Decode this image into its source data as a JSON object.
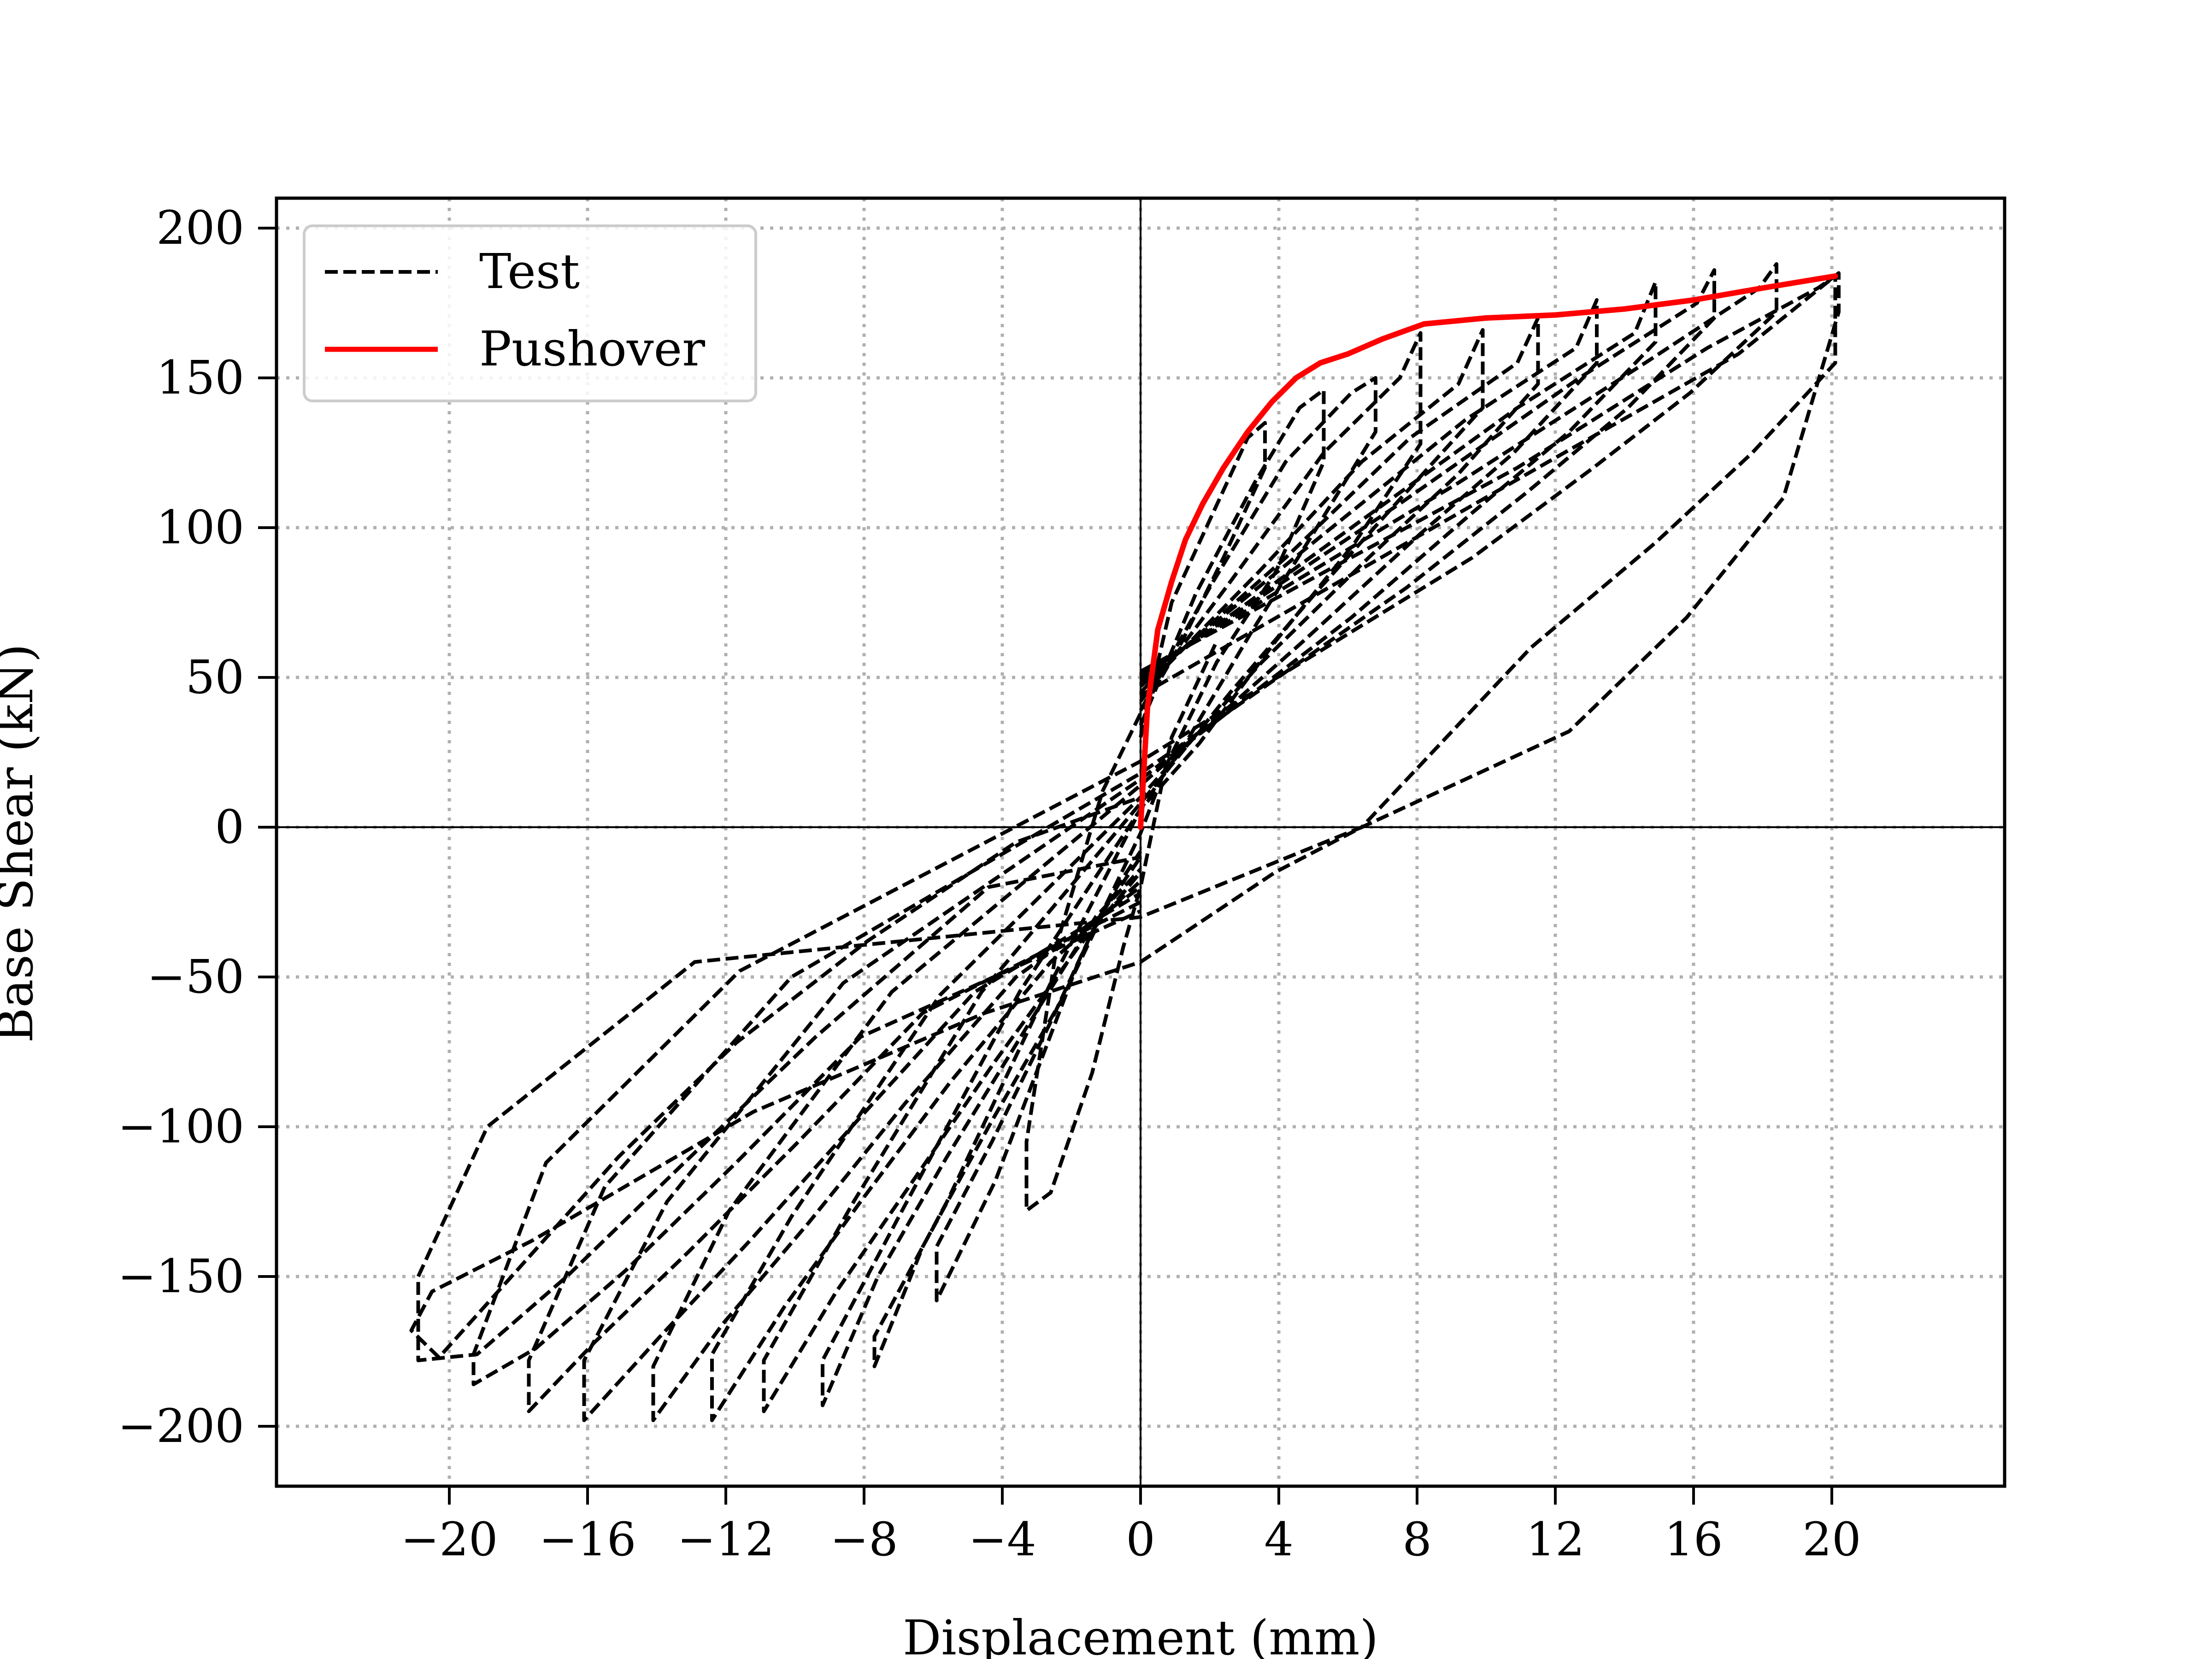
{
  "chart_data": {
    "type": "line",
    "xlabel": "Displacement (mm)",
    "ylabel": "Base Shear (kN)",
    "xlim": [
      -25,
      25
    ],
    "ylim": [
      -220,
      210
    ],
    "xticks": [
      -20,
      -16,
      -12,
      -8,
      -4,
      0,
      4,
      8,
      12,
      16,
      20
    ],
    "xtick_labels": [
      "−20",
      "−16",
      "−12",
      "−8",
      "−4",
      "0",
      "4",
      "8",
      "12",
      "16",
      "20"
    ],
    "yticks": [
      200,
      150,
      100,
      50,
      0,
      -50,
      -100,
      -150,
      -200
    ],
    "ytick_labels": [
      "200",
      "150",
      "100",
      "50",
      "0",
      "−50",
      "−100",
      "−150",
      "−200"
    ],
    "grid": true,
    "legend_position": "top-left",
    "series": [
      {
        "name": "Test",
        "style": "dashed",
        "color": "#000000",
        "cycles": [
          [
            [
              0,
              30
            ],
            [
              0.9,
              75
            ],
            [
              2.1,
              105
            ],
            [
              3.1,
              130
            ],
            [
              3.6,
              135
            ],
            [
              3.6,
              120
            ],
            [
              2.4,
              90
            ],
            [
              1.2,
              62
            ],
            [
              0,
              38
            ],
            [
              -1.1,
              12
            ],
            [
              -2.4,
              -38
            ],
            [
              -3.3,
              -105
            ],
            [
              -3.3,
              -128
            ],
            [
              -2.6,
              -122
            ],
            [
              -1.4,
              -82
            ],
            [
              -0.5,
              -40
            ],
            [
              0,
              -20
            ],
            [
              0.9,
              30
            ],
            [
              2.2,
              62
            ]
          ],
          [
            [
              0,
              34
            ],
            [
              1.6,
              78
            ],
            [
              3.3,
              115
            ],
            [
              4.6,
              140
            ],
            [
              5.3,
              146
            ],
            [
              5.3,
              122
            ],
            [
              3.9,
              85
            ],
            [
              2.2,
              55
            ],
            [
              0.8,
              22
            ],
            [
              0,
              -2
            ],
            [
              -1.8,
              -45
            ],
            [
              -4.2,
              -118
            ],
            [
              -5.9,
              -158
            ],
            [
              -5.9,
              -140
            ],
            [
              -4.3,
              -105
            ],
            [
              -2.6,
              -65
            ],
            [
              -1.2,
              -30
            ],
            [
              0,
              -10
            ]
          ],
          [
            [
              0,
              39
            ],
            [
              2.1,
              82
            ],
            [
              4.2,
              122
            ],
            [
              6.1,
              145
            ],
            [
              6.8,
              150
            ],
            [
              6.8,
              132
            ],
            [
              5.1,
              100
            ],
            [
              3.2,
              65
            ],
            [
              1.4,
              30
            ],
            [
              0,
              6
            ],
            [
              -2.6,
              -52
            ],
            [
              -5.6,
              -125
            ],
            [
              -7.7,
              -170
            ],
            [
              -7.7,
              -180
            ],
            [
              -6.3,
              -140
            ],
            [
              -4.3,
              -98
            ],
            [
              -2.3,
              -58
            ],
            [
              -0.8,
              -22
            ],
            [
              0,
              -8
            ]
          ],
          [
            [
              0,
              42
            ],
            [
              2.6,
              82
            ],
            [
              5.3,
              125
            ],
            [
              7.5,
              150
            ],
            [
              8.1,
              165
            ],
            [
              8.1,
              128
            ],
            [
              6.2,
              95
            ],
            [
              3.9,
              62
            ],
            [
              1.7,
              28
            ],
            [
              0,
              6
            ],
            [
              -3.5,
              -55
            ],
            [
              -6.9,
              -128
            ],
            [
              -9.2,
              -178
            ],
            [
              -9.2,
              -193
            ],
            [
              -7.6,
              -150
            ],
            [
              -5.6,
              -110
            ],
            [
              -3.2,
              -65
            ],
            [
              -1.3,
              -30
            ],
            [
              0,
              -14
            ]
          ],
          [
            [
              0,
              45
            ],
            [
              3.4,
              85
            ],
            [
              6.4,
              122
            ],
            [
              9.2,
              148
            ],
            [
              9.9,
              166
            ],
            [
              9.9,
              140
            ],
            [
              7.7,
              112
            ],
            [
              5.2,
              80
            ],
            [
              2.6,
              45
            ],
            [
              0,
              8
            ],
            [
              -4.6,
              -55
            ],
            [
              -8.3,
              -125
            ],
            [
              -10.9,
              -178
            ],
            [
              -10.9,
              -195
            ],
            [
              -8.8,
              -155
            ],
            [
              -6.7,
              -120
            ],
            [
              -4.2,
              -78
            ],
            [
              -1.8,
              -40
            ],
            [
              0,
              -15
            ]
          ],
          [
            [
              0,
              47
            ],
            [
              4.2,
              90
            ],
            [
              7.8,
              130
            ],
            [
              10.9,
              155
            ],
            [
              11.5,
              170
            ],
            [
              11.5,
              148
            ],
            [
              9.2,
              118
            ],
            [
              6.6,
              90
            ],
            [
              3.5,
              55
            ],
            [
              0,
              10
            ],
            [
              -5.8,
              -56
            ],
            [
              -10.1,
              -130
            ],
            [
              -12.4,
              -176
            ],
            [
              -12.4,
              -198
            ],
            [
              -10.3,
              -160
            ],
            [
              -8.1,
              -125
            ],
            [
              -5.5,
              -85
            ],
            [
              -2.6,
              -45
            ],
            [
              0,
              -18
            ]
          ],
          [
            [
              0,
              48
            ],
            [
              5.1,
              96
            ],
            [
              9.4,
              136
            ],
            [
              12.6,
              160
            ],
            [
              13.2,
              176
            ],
            [
              13.2,
              155
            ],
            [
              10.8,
              125
            ],
            [
              8.1,
              98
            ],
            [
              4.7,
              62
            ],
            [
              0,
              14
            ],
            [
              -7.2,
              -55
            ],
            [
              -11.9,
              -128
            ],
            [
              -14.1,
              -180
            ],
            [
              -14.1,
              -198
            ],
            [
              -12.1,
              -166
            ],
            [
              -9.6,
              -132
            ],
            [
              -6.8,
              -92
            ],
            [
              -3.6,
              -50
            ],
            [
              0,
              -20
            ]
          ],
          [
            [
              0,
              49
            ],
            [
              6.1,
              100
            ],
            [
              10.9,
              140
            ],
            [
              14.3,
              165
            ],
            [
              14.9,
              182
            ],
            [
              14.9,
              162
            ],
            [
              12.4,
              132
            ],
            [
              9.6,
              105
            ],
            [
              6.1,
              70
            ],
            [
              0,
              16
            ],
            [
              -8.6,
              -52
            ],
            [
              -13.7,
              -125
            ],
            [
              -16.1,
              -178
            ],
            [
              -16.1,
              -198
            ],
            [
              -13.9,
              -170
            ],
            [
              -11.3,
              -138
            ],
            [
              -8.2,
              -98
            ],
            [
              -4.8,
              -55
            ],
            [
              0,
              -22
            ]
          ],
          [
            [
              0,
              50
            ],
            [
              7.5,
              108
            ],
            [
              12.7,
              150
            ],
            [
              16.1,
              175
            ],
            [
              16.6,
              186
            ],
            [
              16.6,
              170
            ],
            [
              14.1,
              140
            ],
            [
              11.2,
              112
            ],
            [
              7.7,
              80
            ],
            [
              0,
              18
            ],
            [
              -10.1,
              -50
            ],
            [
              -15.5,
              -120
            ],
            [
              -17.7,
              -178
            ],
            [
              -17.7,
              -195
            ],
            [
              -15.8,
              -172
            ],
            [
              -13.1,
              -142
            ],
            [
              -9.9,
              -105
            ],
            [
              -6.3,
              -62
            ],
            [
              0,
              -25
            ]
          ],
          [
            [
              0,
              51
            ],
            [
              9.2,
              115
            ],
            [
              14.6,
              155
            ],
            [
              17.9,
              180
            ],
            [
              18.4,
              188
            ],
            [
              18.4,
              172
            ],
            [
              15.9,
              145
            ],
            [
              13.1,
              120
            ],
            [
              9.6,
              90
            ],
            [
              0,
              22
            ],
            [
              -11.6,
              -48
            ],
            [
              -17.2,
              -112
            ],
            [
              -19.3,
              -176
            ],
            [
              -19.3,
              -186
            ],
            [
              -17.5,
              -174
            ],
            [
              -14.9,
              -148
            ],
            [
              -11.7,
              -112
            ],
            [
              -8.1,
              -70
            ],
            [
              0,
              -28
            ]
          ],
          [
            [
              0,
              52
            ],
            [
              10.9,
              120
            ],
            [
              16.4,
              160
            ],
            [
              19.6,
              180
            ],
            [
              20.1,
              184
            ],
            [
              20.1,
              155
            ],
            [
              17.7,
              125
            ],
            [
              14.9,
              95
            ],
            [
              11.3,
              60
            ],
            [
              6.4,
              0
            ],
            [
              0,
              -30
            ],
            [
              -12.9,
              -45
            ],
            [
              -18.9,
              -100
            ],
            [
              -20.9,
              -150
            ],
            [
              -20.9,
              -178
            ],
            [
              -19.2,
              -176
            ],
            [
              -16.6,
              -150
            ],
            [
              -13.2,
              -112
            ],
            [
              -9.4,
              -70
            ],
            [
              -4.4,
              -20
            ],
            [
              0,
              -10
            ]
          ],
          [
            [
              0,
              44
            ],
            [
              11.8,
              122
            ],
            [
              17.3,
              158
            ],
            [
              20.2,
              185
            ],
            [
              20.2,
              172
            ],
            [
              18.6,
              110
            ],
            [
              15.8,
              70
            ],
            [
              12.4,
              32
            ],
            [
              6.4,
              0
            ],
            [
              3.9,
              -15
            ],
            [
              0,
              -45
            ],
            [
              -4.5,
              -62
            ],
            [
              -11.2,
              -95
            ],
            [
              -17.6,
              -138
            ],
            [
              -20.5,
              -155
            ],
            [
              -21.1,
              -168
            ],
            [
              -20.3,
              -177
            ],
            [
              -18.2,
              -150
            ],
            [
              -15.1,
              -110
            ],
            [
              -11.7,
              -72
            ],
            [
              -7.9,
              -38
            ],
            [
              -3.6,
              -5
            ],
            [
              0,
              10
            ]
          ]
        ]
      },
      {
        "name": "Pushover",
        "style": "solid",
        "color": "#ff0000",
        "x": [
          0,
          0.2,
          0.5,
          0.9,
          1.3,
          1.8,
          2.4,
          3.1,
          3.8,
          4.5,
          5.2,
          6.0,
          7.0,
          8.2,
          10,
          12,
          14,
          16,
          18,
          20.1
        ],
        "y": [
          0,
          40,
          66,
          82,
          96,
          108,
          120,
          132,
          142,
          150,
          155,
          158,
          163,
          168,
          170,
          171,
          173,
          176,
          180,
          184
        ]
      }
    ]
  }
}
